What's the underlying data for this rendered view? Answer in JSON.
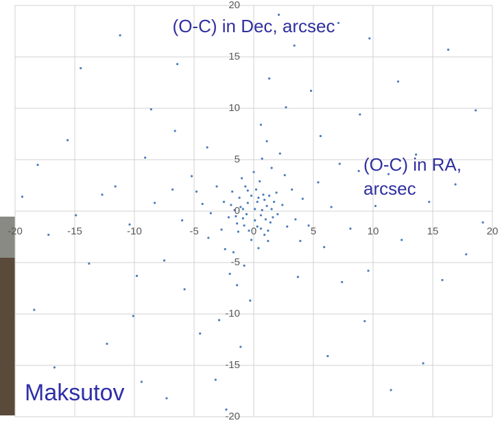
{
  "chart_data": {
    "type": "scatter",
    "title": "(O-C) in Dec, arcsec",
    "xlabel_lines": [
      "(O-C) in RA,",
      "arcsec"
    ],
    "annotation": "Maksutov",
    "color": "#4a7ebb",
    "grid": true,
    "xlim": [
      -20,
      20
    ],
    "ylim": [
      -20,
      20
    ],
    "xticks": [
      -20,
      -15,
      -10,
      -5,
      0,
      5,
      10,
      15,
      20
    ],
    "yticks": [
      -20,
      -15,
      -10,
      -5,
      0,
      5,
      10,
      15,
      20
    ],
    "series": [
      {
        "name": "O-C",
        "x": [
          0.1,
          -0.5,
          0.6,
          -0.9,
          1.1,
          -1.2,
          0.3,
          0.8,
          -0.4,
          1.4,
          -1.6,
          1.7,
          0.2,
          -0.7,
          0.9,
          -1.3,
          2.0,
          -2.1,
          1.9,
          -1.8,
          0.5,
          -0.2,
          2.4,
          -2.5,
          1.2,
          -1.0,
          2.8,
          -2.7,
          0.0,
          0.4,
          3.2,
          -3.1,
          3.5,
          -3.6,
          1.5,
          -1.7,
          2.6,
          -2.4,
          4.1,
          -4.3,
          3.9,
          -3.8,
          0.7,
          -0.8,
          4.6,
          -4.8,
          2.2,
          -2.0,
          5.4,
          -5.2,
          5.9,
          -6.0,
          1.1,
          -1.4,
          6.5,
          -6.8,
          3.7,
          -3.9,
          7.2,
          -7.5,
          8.1,
          -8.3,
          0.6,
          -0.3,
          5.6,
          -5.8,
          8.8,
          -9.1,
          7.4,
          -6.6,
          10.2,
          -10.4,
          2.7,
          -2.9,
          9.6,
          -9.8,
          11.3,
          -11.6,
          4.8,
          -4.5,
          12.4,
          -12.7,
          1.3,
          -1.1,
          8.9,
          -8.6,
          9.3,
          -10.1,
          13.6,
          -13.8,
          14.7,
          -14.9,
          6.2,
          -6.4,
          15.8,
          -15.6,
          3.4,
          -3.2,
          12.1,
          -12.3,
          16.9,
          -17.2,
          17.8,
          -18.1,
          9.7,
          -9.4,
          14.2,
          -14.5,
          18.6,
          -18.4,
          7.1,
          -7.3,
          19.2,
          -19.4,
          16.3,
          -16.7,
          11.5,
          -11.2,
          2.1,
          -2.3,
          0.3,
          -0.6,
          1.0,
          -1.1,
          0.7,
          -0.2,
          1.5,
          -1.4,
          0.1,
          0.9,
          -0.8,
          1.3,
          -1.9,
          0.6,
          -0.5,
          1.6,
          -1.5,
          0.4,
          -0.9,
          1.2
        ],
        "y": [
          0.2,
          0.8,
          -0.4,
          -0.7,
          0.5,
          1.3,
          -1.5,
          1.6,
          -1.9,
          -1.1,
          0.1,
          0.9,
          2.1,
          2.4,
          -2.3,
          -2.0,
          -0.3,
          -0.6,
          1.8,
          1.9,
          2.9,
          -2.8,
          0.6,
          0.9,
          -2.9,
          3.2,
          -1.5,
          -1.8,
          3.8,
          -3.6,
          2.1,
          2.4,
          -0.8,
          -0.2,
          4.2,
          -4.0,
          3.5,
          -3.7,
          1.2,
          0.7,
          -2.9,
          -2.6,
          5.1,
          -5.3,
          -1.4,
          1.9,
          5.6,
          -6.1,
          2.8,
          3.4,
          -3.5,
          -0.9,
          6.8,
          -7.2,
          0.4,
          2.1,
          -6.4,
          6.2,
          4.6,
          -4.8,
          -1.7,
          0.8,
          8.4,
          -8.7,
          7.3,
          -7.6,
          3.9,
          5.2,
          -6.9,
          7.8,
          0.5,
          -1.3,
          10.1,
          -10.6,
          -5.8,
          -6.3,
          3.6,
          2.4,
          11.7,
          -11.9,
          -2.8,
          1.6,
          12.9,
          -13.2,
          9.4,
          9.9,
          -10.7,
          -10.2,
          5.5,
          -5.1,
          0.9,
          -0.4,
          -14.1,
          14.3,
          -6.7,
          6.9,
          16.1,
          -16.4,
          12.6,
          -12.9,
          2.6,
          -2.3,
          -4.2,
          4.5,
          16.8,
          -16.6,
          -14.8,
          13.9,
          9.8,
          -9.6,
          18.3,
          -18.2,
          -1.1,
          1.4,
          15.7,
          -15.2,
          -17.4,
          17.1,
          19.1,
          -19.3,
          0.9,
          -0.3,
          -0.8,
          0.4,
          0.1,
          1.5,
          0.2,
          -1.2,
          -0.9,
          1.1,
          -1.4,
          1.5,
          0.6,
          -1.7,
          2.0,
          -0.6,
          -0.5,
          1.3,
          0.2,
          -1.9
        ]
      }
    ]
  }
}
